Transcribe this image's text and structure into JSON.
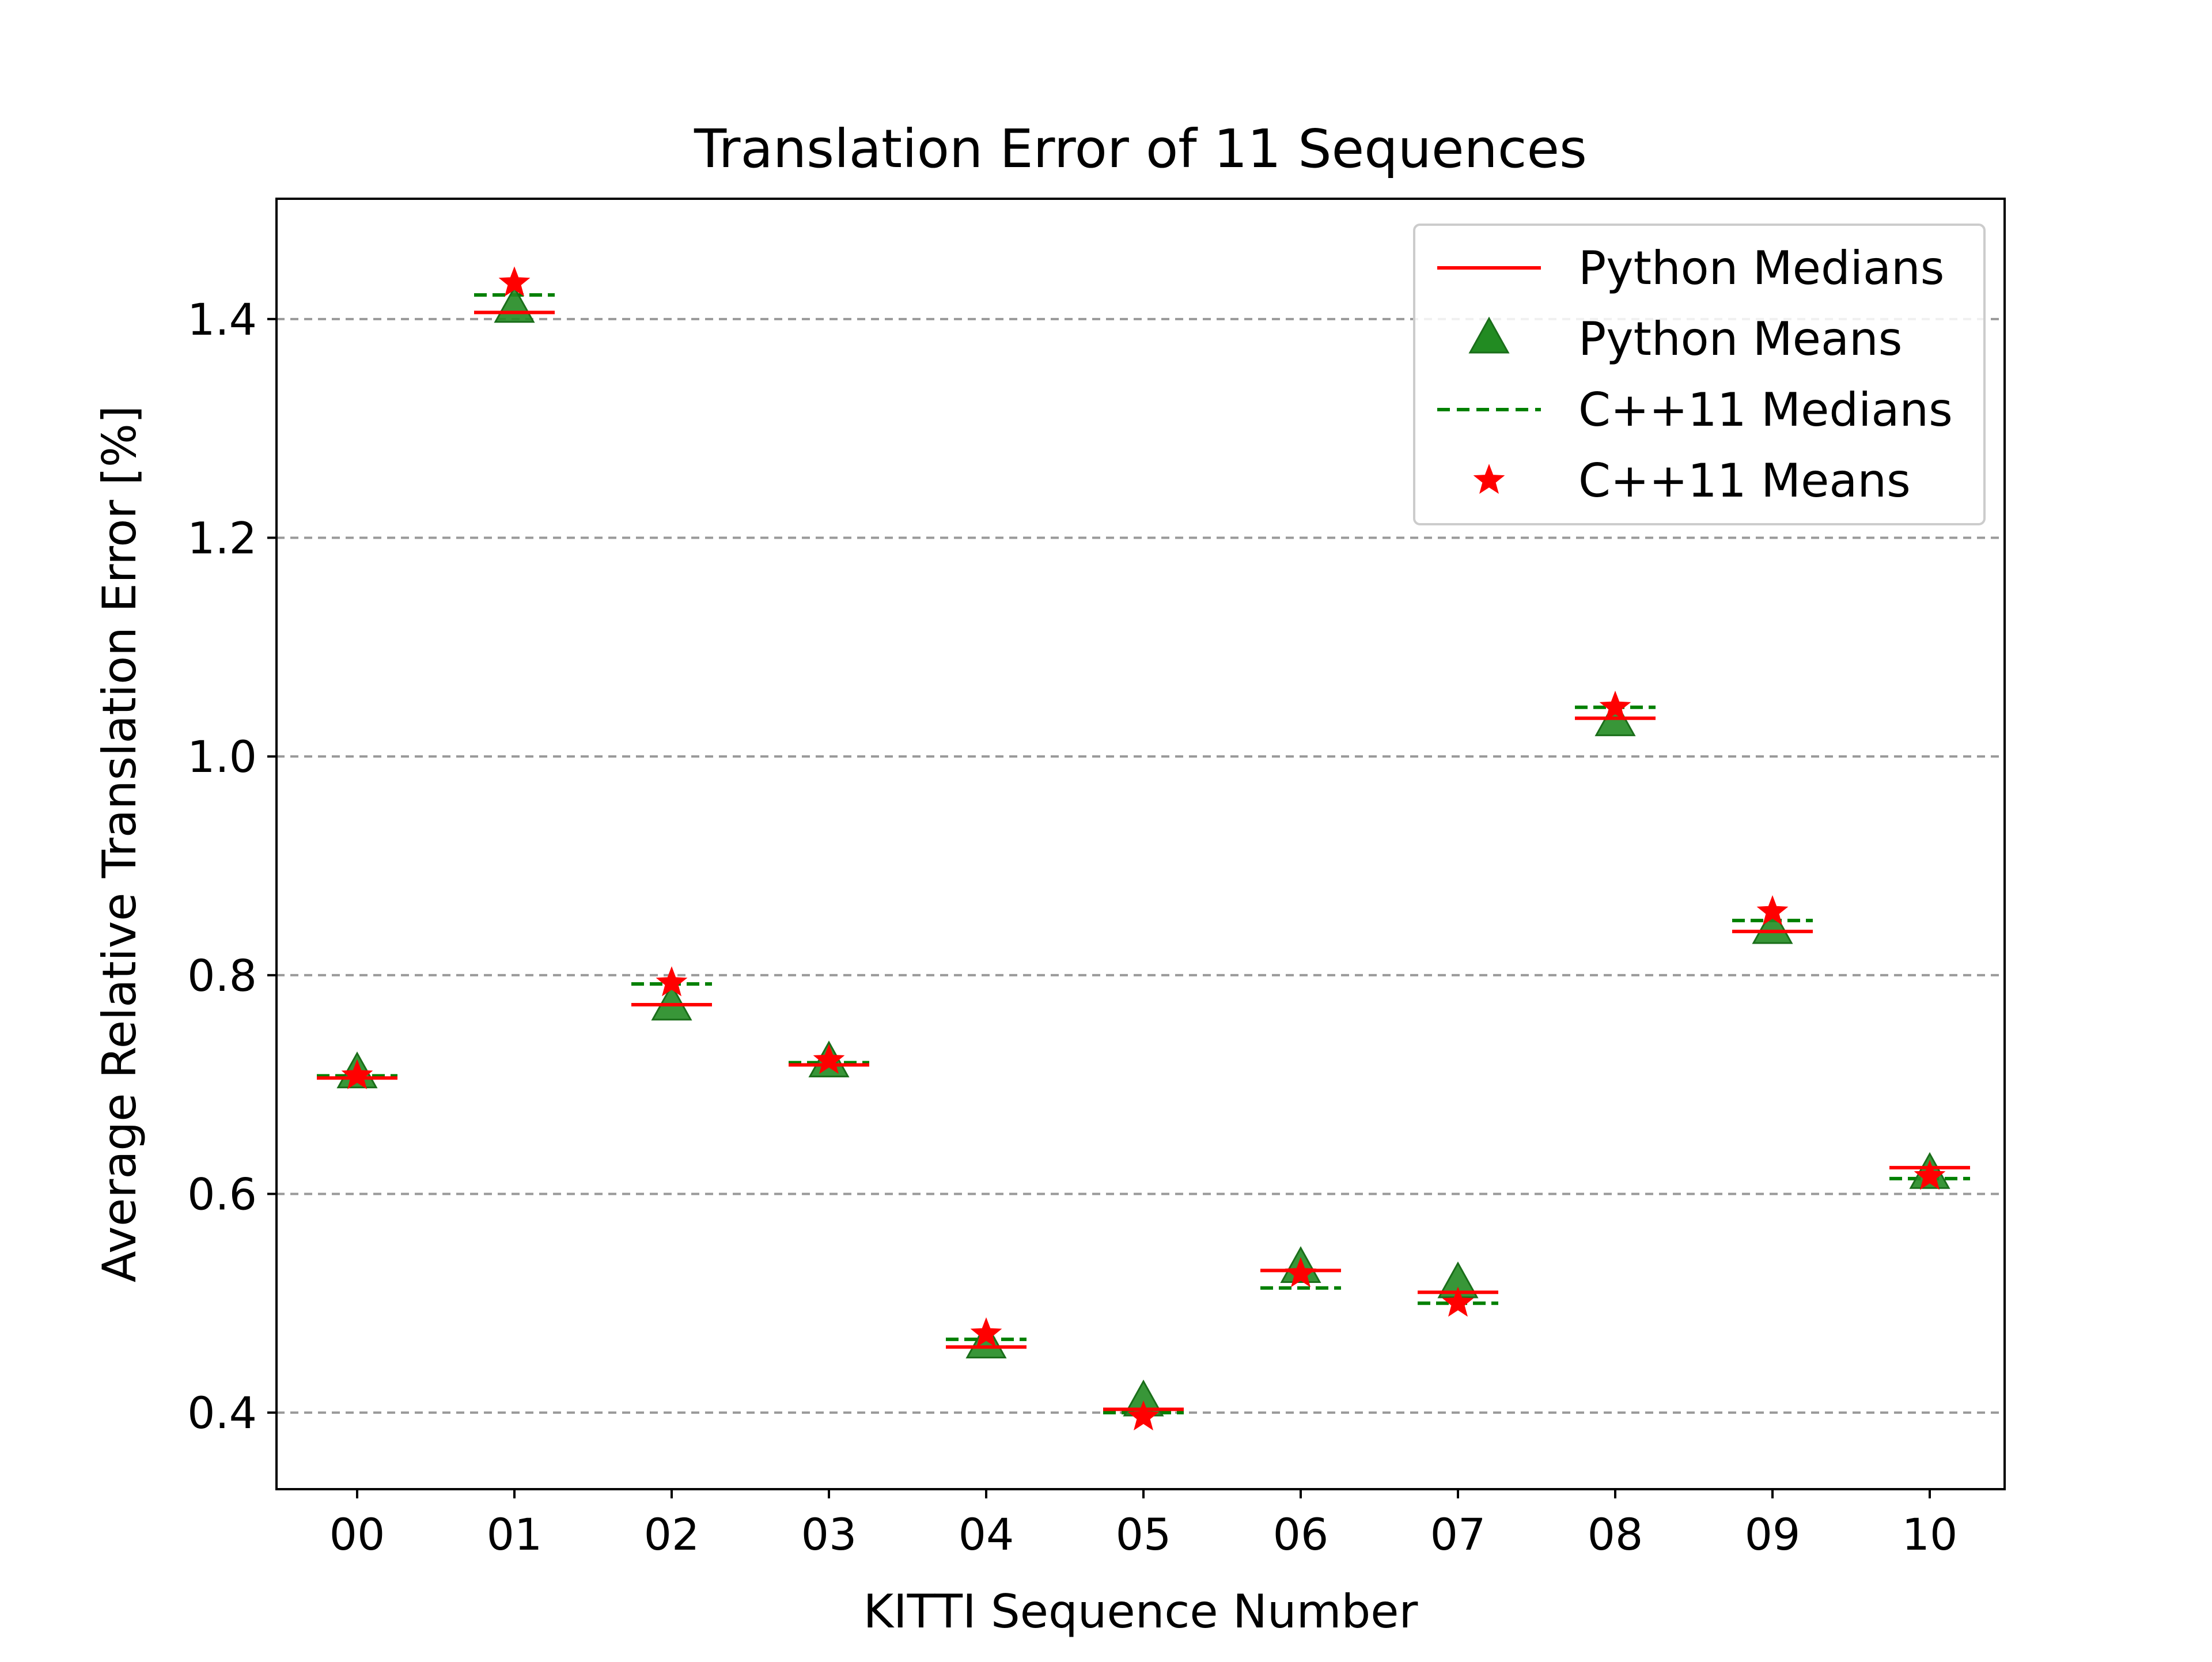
{
  "chart_data": {
    "type": "scatter",
    "title": "Translation Error of 11 Sequences",
    "xlabel": "KITTI Sequence Number",
    "ylabel": "Average Relative Translation Error [%]",
    "categories": [
      "00",
      "01",
      "02",
      "03",
      "04",
      "05",
      "06",
      "07",
      "08",
      "09",
      "10"
    ],
    "ylim": [
      0.33,
      1.51
    ],
    "yticks": [
      "0.4",
      "0.6",
      "0.8",
      "1.0",
      "1.2",
      "1.4"
    ],
    "ytick_values": [
      0.4,
      0.6,
      0.8,
      1.0,
      1.2,
      1.4
    ],
    "grid": "horizontal dashed",
    "legend_position": "top-right",
    "series": [
      {
        "name": "Python Medians",
        "marker": "solid-line",
        "color": "#ff0000",
        "values": [
          0.706,
          1.406,
          0.773,
          0.718,
          0.46,
          0.403,
          0.53,
          0.51,
          1.035,
          0.84,
          0.624
        ]
      },
      {
        "name": "Python Means",
        "marker": "triangle",
        "color": "#228b22",
        "values": [
          0.71,
          1.41,
          0.772,
          0.72,
          0.463,
          0.41,
          0.532,
          0.518,
          1.032,
          0.842,
          0.618
        ]
      },
      {
        "name": "C++11 Medians",
        "marker": "dashed-line",
        "color": "#008000",
        "values": [
          0.708,
          1.422,
          0.792,
          0.72,
          0.467,
          0.4,
          0.514,
          0.5,
          1.045,
          0.85,
          0.614
        ]
      },
      {
        "name": "C++11 Means",
        "marker": "star",
        "color": "#ff0000",
        "values": [
          0.708,
          1.433,
          0.793,
          0.722,
          0.472,
          0.396,
          0.527,
          0.5,
          1.045,
          0.858,
          0.616
        ]
      }
    ]
  }
}
